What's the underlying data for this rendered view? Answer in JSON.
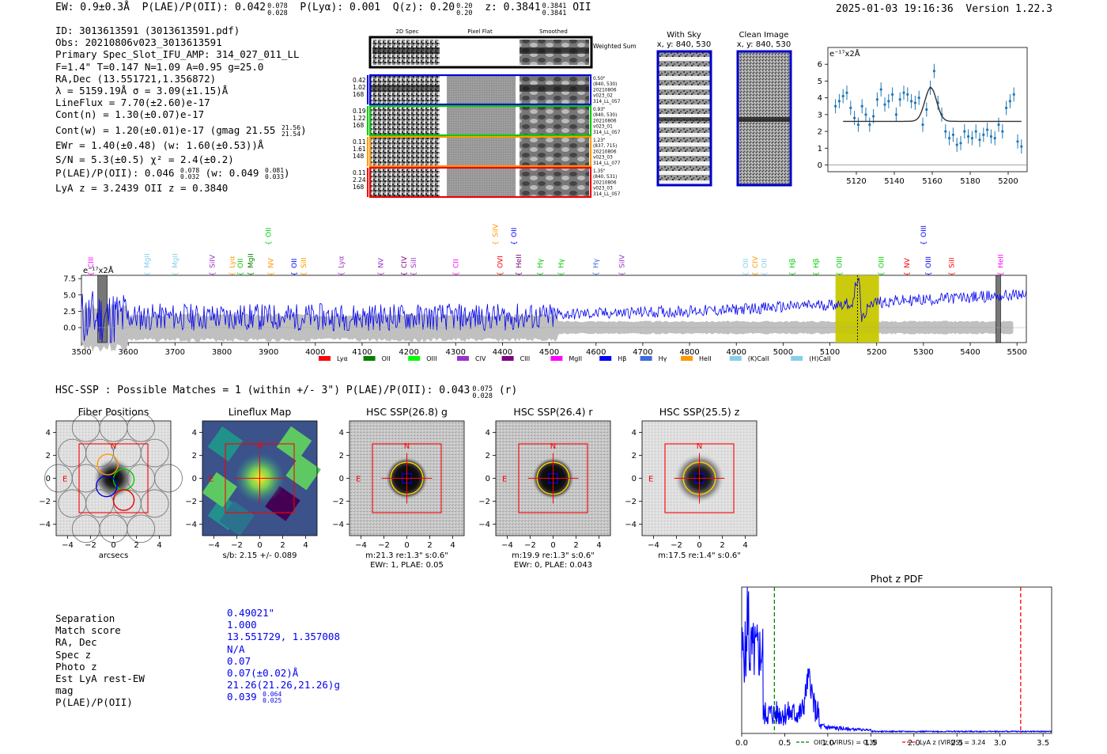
{
  "header": {
    "ew": "EW: 0.9±0.3Å",
    "plae": "P(LAE)/P(OII): 0.042",
    "plae_hi": "0.078",
    "plae_lo": "0.028",
    "plya": "P(Lyα): 0.001",
    "qz": "Q(z): 0.20",
    "qz_hi": "0.20",
    "qz_lo": "0.20",
    "z": "z: 0.3841",
    "z_hi": "0.3841",
    "z_lo": "0.3841",
    "z_line": "OII",
    "timestamp": "2025-01-03 19:16:36",
    "version": "Version 1.22.3"
  },
  "info": {
    "lines": [
      "ID: 3013613591 (3013613591.pdf)",
      "Obs: 20210806v023_3013613591",
      "Primary Spec_Slot_IFU_AMP: 314_027_011_LL",
      "F=1.4\"  T=0.147  N=1.09  A=0.95  g=25.0",
      "RA,Dec (13.551721,1.356872)",
      "λ = 5159.19Å  σ = 3.09(±1.15)Å",
      "LineFlux = 7.70(±2.60)e-17",
      "Cont(n) = 1.30(±0.07)e-17",
      "Cont(w) = 1.20(±0.01)e-17 (gmag 21.55",
      "EWr = 1.40(±0.48) (w: 1.60(±0.53))Å",
      "S/N = 5.3(±0.5)  χ² = 2.4(±0.2)",
      "P(LAE)/P(OII): 0.046",
      "LyA z = 3.2439  OII z = 0.3840"
    ],
    "gmag_hi": "21.56",
    "gmag_lo": "21.54",
    "plae_hi": "0.078",
    "plae_lo": "0.032",
    "plae_w": "(w: 0.049",
    "plae_w_hi": "0.081",
    "plae_w_lo": "0.033"
  },
  "fiber_cutouts": {
    "col_headers": [
      "2D Spec",
      "Pixel Flat",
      "Smoothed"
    ],
    "weighted_sum_label": "Weighted Sum",
    "rows": [
      {
        "left": [
          "0.42",
          "1.02",
          "168"
        ],
        "right": [
          "0.50\"",
          "(840, 530)",
          "20210806",
          "v023_02",
          "314_LL_057"
        ],
        "color": "#0000dd"
      },
      {
        "left": [
          "0.19",
          "1.22",
          "168"
        ],
        "right": [
          "0.93\"",
          "(840, 530)",
          "20210806",
          "v023_01",
          "314_LL_057"
        ],
        "color": "#00cc00"
      },
      {
        "left": [
          "0.11",
          "1.61",
          "148"
        ],
        "right": [
          "1.23\"",
          "(837, 715)",
          "20210806",
          "v023_03",
          "314_LL_077"
        ],
        "color": "#ff9900"
      },
      {
        "left": [
          "0.11",
          "2.24",
          "168"
        ],
        "right": [
          "1.35\"",
          "(840, 531)",
          "20210806",
          "v023_03",
          "314_LL_057"
        ],
        "color": "#ee0000"
      }
    ]
  },
  "sky_panels": {
    "with_sky": "With Sky",
    "with_sky_xy": "x, y: 840, 530",
    "clean": "Clean Image",
    "clean_xy": "x, y: 840, 530"
  },
  "line_zoom_chart": {
    "type": "scatter",
    "ylabel": "e⁻¹⁷x2Å",
    "xlim": [
      5105,
      5210
    ],
    "ylim": [
      -0.4,
      7
    ],
    "xticks": [
      "5120",
      "5140",
      "5160",
      "5180",
      "5200"
    ],
    "yticks": [
      "0",
      "1",
      "2",
      "3",
      "4",
      "5",
      "6"
    ],
    "fit": {
      "center": 5159.2,
      "sigma": 3.09,
      "continuum": 2.6,
      "peak": 4.6
    },
    "x": [
      5109,
      5111,
      5113,
      5115,
      5117,
      5119,
      5121,
      5123,
      5125,
      5127,
      5129,
      5131,
      5133,
      5135,
      5137,
      5139,
      5141,
      5143,
      5145,
      5147,
      5149,
      5151,
      5153,
      5155,
      5157,
      5159,
      5161,
      5163,
      5165,
      5167,
      5169,
      5171,
      5173,
      5175,
      5177,
      5179,
      5181,
      5183,
      5185,
      5187,
      5189,
      5191,
      5193,
      5195,
      5197,
      5199,
      5201,
      5203,
      5205,
      5207
    ],
    "y": [
      3.5,
      3.8,
      4.1,
      4.3,
      3.4,
      2.8,
      2.4,
      3.5,
      3.0,
      2.4,
      2.9,
      3.9,
      4.5,
      3.6,
      3.8,
      4.2,
      3.0,
      3.9,
      4.3,
      4.2,
      3.8,
      3.7,
      4.0,
      2.4,
      3.3,
      4.6,
      5.6,
      3.7,
      3.0,
      2.0,
      1.6,
      1.8,
      1.2,
      1.3,
      2.0,
      1.7,
      1.6,
      2.0,
      1.5,
      1.8,
      2.1,
      1.7,
      1.6,
      2.4,
      2.0,
      3.4,
      3.8,
      4.2,
      1.4,
      1.1
    ]
  },
  "spectrum_chart": {
    "type": "line",
    "ylabel": "e⁻¹⁷x2Å",
    "xlim": [
      3500,
      5520
    ],
    "ylim": [
      -2.3,
      8
    ],
    "xticks": [
      "3500",
      "3600",
      "3700",
      "3800",
      "3900",
      "4000",
      "4100",
      "4200",
      "4300",
      "4400",
      "4500",
      "4600",
      "4700",
      "4800",
      "4900",
      "5000",
      "5100",
      "5200",
      "5300",
      "5400",
      "5500"
    ],
    "yticks": [
      "0.0",
      "2.5",
      "5.0",
      "7.5"
    ],
    "highlight_window": [
      5112,
      5205
    ],
    "line_marker": 5159,
    "masked_regions": [
      [
        3535,
        3555
      ],
      [
        5455,
        5465
      ]
    ],
    "legend": [
      {
        "label": "Lyα",
        "color": "#ff0000"
      },
      {
        "label": "OII",
        "color": "#008000"
      },
      {
        "label": "OIII",
        "color": "#00ff00"
      },
      {
        "label": "CIV",
        "color": "#9932cc"
      },
      {
        "label": "CIII",
        "color": "#800080"
      },
      {
        "label": "MgII",
        "color": "#ff00ff"
      },
      {
        "label": "Hβ",
        "color": "#0000ff"
      },
      {
        "label": "Hγ",
        "color": "#4169e1"
      },
      {
        "label": "HeII",
        "color": "#ff9900"
      },
      {
        "label": "(K)CaII",
        "color": "#87ceeb"
      },
      {
        "label": "(H)CaII",
        "color": "#87ceeb"
      }
    ],
    "line_labels": [
      {
        "label": "CIII",
        "x": 3520,
        "row": 1,
        "color": "#ff00ff"
      },
      {
        "label": "MgII",
        "x": 3640,
        "row": 1,
        "color": "#87ceeb"
      },
      {
        "label": "MgII",
        "x": 3700,
        "row": 1,
        "color": "#87ceeb"
      },
      {
        "label": "SiIV",
        "x": 3780,
        "row": 1,
        "color": "#9932cc"
      },
      {
        "label": "Lyα",
        "x": 3822,
        "row": 1,
        "color": "#ff9900"
      },
      {
        "label": "OII",
        "x": 3840,
        "row": 1,
        "color": "#00cc00"
      },
      {
        "label": "MgII",
        "x": 3862,
        "row": 1,
        "color": "#008000"
      },
      {
        "label": "NV",
        "x": 3905,
        "row": 1,
        "color": "#ff9900"
      },
      {
        "label": "OII",
        "x": 3955,
        "row": 1,
        "color": "#0000ff"
      },
      {
        "label": "SiII",
        "x": 3975,
        "row": 1,
        "color": "#ff9900"
      },
      {
        "label": "Lyα",
        "x": 4055,
        "row": 1,
        "color": "#9932cc"
      },
      {
        "label": "NV",
        "x": 4140,
        "row": 1,
        "color": "#9932cc"
      },
      {
        "label": "CIV",
        "x": 4190,
        "row": 1,
        "color": "#800080"
      },
      {
        "label": "SiII",
        "x": 4210,
        "row": 1,
        "color": "#9932cc"
      },
      {
        "label": "CII",
        "x": 4300,
        "row": 1,
        "color": "#ff00ff"
      },
      {
        "label": "OVI",
        "x": 4395,
        "row": 1,
        "color": "#ff0000"
      },
      {
        "label": "HeII",
        "x": 4435,
        "row": 1,
        "color": "#800080"
      },
      {
        "label": "Hγ",
        "x": 4480,
        "row": 1,
        "color": "#00cc00"
      },
      {
        "label": "Hγ",
        "x": 4525,
        "row": 1,
        "color": "#00cc00"
      },
      {
        "label": "Hγ",
        "x": 4600,
        "row": 1,
        "color": "#4169e1"
      },
      {
        "label": "SiIV",
        "x": 4655,
        "row": 1,
        "color": "#9932cc"
      },
      {
        "label": "OII",
        "x": 4920,
        "row": 1,
        "color": "#87ceeb"
      },
      {
        "label": "CIV",
        "x": 4940,
        "row": 1,
        "color": "#ff9900"
      },
      {
        "label": "OII",
        "x": 4960,
        "row": 1,
        "color": "#87ceeb"
      },
      {
        "label": "Hβ",
        "x": 5020,
        "row": 1,
        "color": "#00cc00"
      },
      {
        "label": "Hβ",
        "x": 5070,
        "row": 1,
        "color": "#00cc00"
      },
      {
        "label": "OIII",
        "x": 5120,
        "row": 1,
        "color": "#00cc00"
      },
      {
        "label": "OIII",
        "x": 5210,
        "row": 1,
        "color": "#00cc00"
      },
      {
        "label": "NV",
        "x": 5265,
        "row": 1,
        "color": "#ff0000"
      },
      {
        "label": "OIII",
        "x": 5310,
        "row": 1,
        "color": "#0000ff"
      },
      {
        "label": "SiII",
        "x": 5360,
        "row": 1,
        "color": "#ff0000"
      },
      {
        "label": "HeII",
        "x": 5465,
        "row": 1,
        "color": "#ff00ff"
      },
      {
        "label": "OII",
        "x": 3900,
        "row": 2,
        "color": "#00cc00"
      },
      {
        "label": "SiIV",
        "x": 4385,
        "row": 2,
        "color": "#ff9900"
      },
      {
        "label": "OII",
        "x": 4425,
        "row": 2,
        "color": "#0000ff"
      },
      {
        "label": "OIII",
        "x": 5300,
        "row": 2,
        "color": "#0000ff"
      }
    ]
  },
  "hsc": {
    "header": "HSC-SSP : Possible Matches = 1 (within +/- 3\")  P(LAE)/P(OII): 0.043",
    "header_hi": "0.075",
    "header_lo": "0.028",
    "header_tail": "(r)",
    "xticks": [
      "−4",
      "−2",
      "0",
      "2",
      "4"
    ],
    "yticks": [
      "4",
      "2",
      "0",
      "−2",
      "−4"
    ],
    "north": "N",
    "east": "E",
    "panels": [
      {
        "title": "Fiber Positions",
        "caption1": "arcsecs",
        "caption2": ""
      },
      {
        "title": "Lineflux Map",
        "caption1": "s/b: 2.15 +/- 0.089",
        "caption2": ""
      },
      {
        "title": "HSC SSP(26.8) g",
        "caption1": "m:21.3  re:1.3\"  s:0.6\"",
        "caption2": "EWr: 1, PLAE: 0.05"
      },
      {
        "title": "HSC SSP(26.4) r",
        "caption1": "m:19.9  re:1.3\"  s:0.6\"",
        "caption2": "EWr: 0, PLAE: 0.043"
      },
      {
        "title": "HSC SSP(25.5) z",
        "caption1": "m:17.5  re:1.4\"  s:0.6\"",
        "caption2": ""
      }
    ]
  },
  "match": {
    "labels": [
      "Separation",
      "Match score",
      "RA, Dec",
      "Spec z",
      "Photo z",
      "Est LyA rest-EW",
      "mag",
      "P(LAE)/P(OII)"
    ],
    "values": [
      "0.49021\"",
      "1.000",
      "13.551729, 1.357008",
      "N/A",
      "0.07",
      "0.07(±0.02)Å",
      "21.26(21.26,21.26)g",
      "0.039"
    ],
    "plae_hi": "0.064",
    "plae_lo": "0.025"
  },
  "photz_chart": {
    "type": "line",
    "title": "Phot z PDF",
    "xlim": [
      0,
      3.6
    ],
    "xticks": [
      "0.0",
      "0.5",
      "1.0",
      "1.5",
      "2.0",
      "2.5",
      "3.0",
      "3.5"
    ],
    "oii_z": 0.38,
    "lya_z": 3.24,
    "legend": [
      "OII z (VIRUS) = 0.38",
      "LyA z (VIRUS) = 3.24"
    ],
    "colors": {
      "pdf": "#0000ff",
      "oii": "#008000",
      "lya": "#ff0000"
    }
  }
}
